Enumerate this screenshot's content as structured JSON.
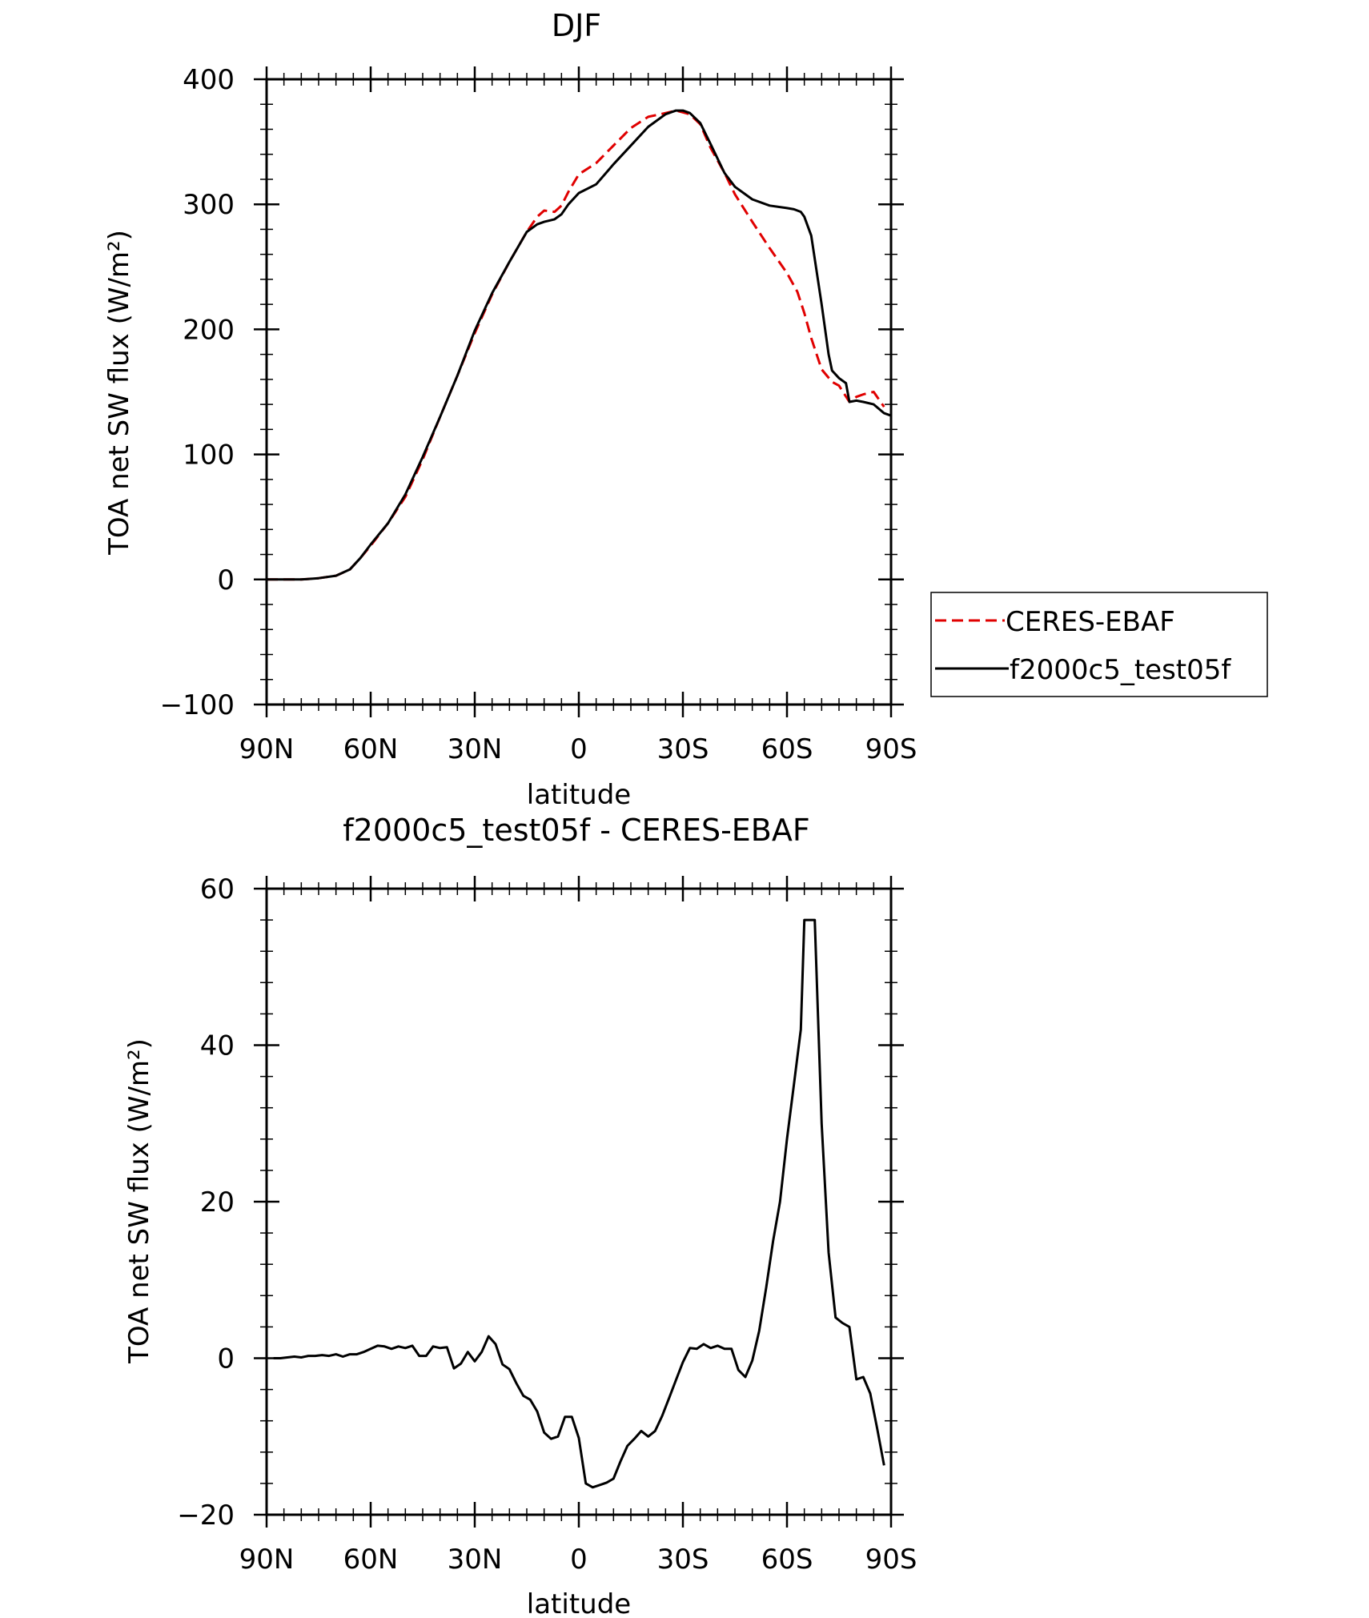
{
  "figure": {
    "background": "#ffffff"
  },
  "chart_data": [
    {
      "type": "line",
      "title": "DJF",
      "xlabel": "latitude",
      "ylabel": "TOA net SW flux (W/m²)",
      "xlim": [
        90,
        -90
      ],
      "ylim": [
        -100,
        400
      ],
      "xticks": [
        90,
        60,
        30,
        0,
        -30,
        -60,
        -90
      ],
      "xtick_labels": [
        "90N",
        "60N",
        "30N",
        "0",
        "30S",
        "60S",
        "90S"
      ],
      "yticks": [
        -100,
        0,
        100,
        200,
        300,
        400
      ],
      "ytick_labels": [
        "-100",
        "0",
        "100",
        "200",
        "300",
        "400"
      ],
      "grid": false,
      "legend_position": "right-outside",
      "series": [
        {
          "name": "CERES-EBAF",
          "color": "#e00000",
          "dash": "dashed",
          "x": [
            90,
            85,
            80,
            75,
            70,
            66,
            63,
            60,
            55,
            50,
            45,
            40,
            35,
            30,
            25,
            20,
            15,
            12,
            10,
            7,
            5,
            3,
            0,
            -5,
            -10,
            -15,
            -20,
            -25,
            -28,
            -32,
            -35,
            -38,
            -42,
            -45,
            -50,
            -55,
            -60,
            -63,
            -65,
            -67,
            -70,
            -73,
            -75,
            -78,
            -80,
            -82,
            -85,
            -88
          ],
          "y": [
            0,
            0,
            0,
            1,
            3,
            8,
            17,
            27,
            45,
            66,
            96,
            130,
            163,
            197,
            228,
            254,
            278,
            290,
            295,
            294,
            299,
            310,
            324,
            333,
            347,
            361,
            370,
            373,
            375,
            372,
            364,
            345,
            325,
            308,
            286,
            265,
            245,
            230,
            213,
            193,
            168,
            158,
            155,
            142,
            146,
            148,
            150,
            138
          ]
        },
        {
          "name": "f2000c5_test05f",
          "color": "#000000",
          "dash": "solid",
          "x": [
            90,
            85,
            80,
            75,
            70,
            66,
            63,
            60,
            55,
            50,
            45,
            40,
            35,
            30,
            25,
            20,
            15,
            12,
            10,
            7,
            5,
            3,
            0,
            -5,
            -10,
            -15,
            -20,
            -25,
            -28,
            -30,
            -32,
            -35,
            -38,
            -42,
            -45,
            -50,
            -55,
            -60,
            -62,
            -64,
            -65,
            -67,
            -70,
            -72,
            -73,
            -75,
            -77,
            -78,
            -80,
            -82,
            -85,
            -88,
            -90
          ],
          "y": [
            0,
            0,
            0,
            1,
            3,
            8,
            17,
            28,
            45,
            68,
            98,
            130,
            163,
            199,
            229,
            254,
            278,
            284,
            286,
            288,
            292,
            300,
            309,
            316,
            332,
            347,
            362,
            372,
            375,
            375,
            373,
            365,
            348,
            325,
            314,
            304,
            299,
            297,
            296,
            294,
            290,
            275,
            220,
            180,
            167,
            161,
            157,
            142,
            143,
            142,
            140,
            133,
            131
          ]
        }
      ]
    },
    {
      "type": "line",
      "title": "f2000c5_test05f - CERES-EBAF",
      "xlabel": "latitude",
      "ylabel": "TOA net SW flux (W/m²)",
      "xlim": [
        90,
        -90
      ],
      "ylim": [
        -20,
        60
      ],
      "xticks": [
        90,
        60,
        30,
        0,
        -30,
        -60,
        -90
      ],
      "xtick_labels": [
        "90N",
        "60N",
        "30N",
        "0",
        "30S",
        "60S",
        "90S"
      ],
      "yticks": [
        -20,
        0,
        20,
        40,
        60
      ],
      "ytick_labels": [
        "-20",
        "0",
        "20",
        "40",
        "60"
      ],
      "grid": false,
      "series": [
        {
          "name": "f2000c5_test05f - CERES-EBAF",
          "color": "#000000",
          "dash": "solid",
          "x": [
            88,
            86,
            84,
            82,
            80,
            78,
            76,
            74,
            72,
            70,
            68,
            66,
            64,
            62,
            60,
            58,
            56,
            54,
            52,
            50,
            48,
            46,
            44,
            42,
            40,
            38,
            36,
            34,
            32,
            30,
            28,
            26,
            24,
            22,
            20,
            18,
            16,
            14,
            12,
            10,
            8,
            6,
            4,
            2,
            0,
            -2,
            -4,
            -6,
            -8,
            -10,
            -12,
            -14,
            -16,
            -18,
            -20,
            -22,
            -24,
            -26,
            -28,
            -30,
            -32,
            -34,
            -36,
            -38,
            -40,
            -42,
            -44,
            -46,
            -48,
            -50,
            -52,
            -54,
            -56,
            -58,
            -60,
            -62,
            -64,
            -65,
            -66,
            -68,
            -70,
            -72,
            -74,
            -76,
            -78,
            -80,
            -82,
            -84,
            -86,
            -88
          ],
          "y": [
            0,
            0,
            0.1,
            0.2,
            0.1,
            0.3,
            0.3,
            0.4,
            0.3,
            0.5,
            0.2,
            0.5,
            0.5,
            0.8,
            1.2,
            1.6,
            1.5,
            1.2,
            1.5,
            1.3,
            1.6,
            0.3,
            0.3,
            1.5,
            1.3,
            1.4,
            -1.3,
            -0.7,
            0.8,
            -0.4,
            0.8,
            2.8,
            1.8,
            -0.8,
            -1.4,
            -3.2,
            -4.8,
            -5.3,
            -6.8,
            -9.5,
            -10.3,
            -10,
            -7.5,
            -7.5,
            -10.2,
            -16,
            -16.5,
            -16.2,
            -15.9,
            -15.4,
            -13.2,
            -11.2,
            -10.3,
            -9.3,
            -10,
            -9.3,
            -7.4,
            -5.1,
            -2.8,
            -0.5,
            1.3,
            1.2,
            1.8,
            1.3,
            1.6,
            1.2,
            1.2,
            -1.5,
            -2.4,
            -0.3,
            3.5,
            9,
            15,
            20,
            28,
            35,
            42,
            56,
            56,
            56,
            30,
            13.5,
            5.2,
            4.5,
            4,
            -2.7,
            -2.4,
            -4.5,
            -9,
            -13.7
          ]
        }
      ]
    }
  ]
}
